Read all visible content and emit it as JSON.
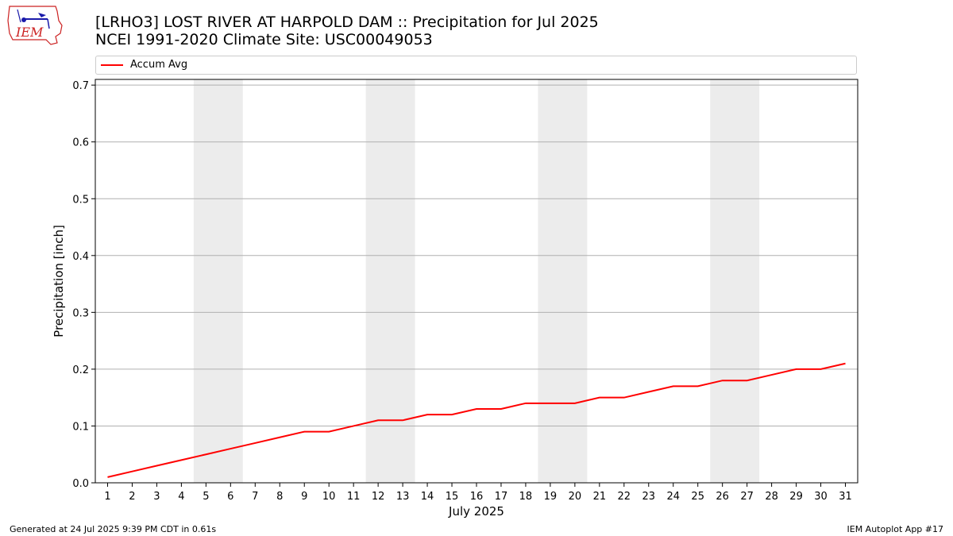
{
  "header": {
    "title_line1": "[LRHO3] LOST RIVER AT HARPOLD DAM :: Precipitation for Jul 2025",
    "title_line2": "NCEI 1991-2020 Climate Site: USC00049053"
  },
  "logo": {
    "text": "IEM"
  },
  "footer": {
    "generated": "Generated at 24 Jul 2025 9:39 PM CDT in 0.61s",
    "app": "IEM Autoplot App #17"
  },
  "colors": {
    "series": "#ff0000",
    "weekend_band": "#ececec",
    "grid": "#b0b0b0",
    "logo": "#cc2222"
  },
  "chart_data": {
    "type": "line",
    "title": "[LRHO3] LOST RIVER AT HARPOLD DAM :: Precipitation for Jul 2025",
    "subtitle": "NCEI 1991-2020 Climate Site: USC00049053",
    "xlabel": "July 2025",
    "ylabel": "Precipitation [inch]",
    "x": [
      1,
      2,
      3,
      4,
      5,
      6,
      7,
      8,
      9,
      10,
      11,
      12,
      13,
      14,
      15,
      16,
      17,
      18,
      19,
      20,
      21,
      22,
      23,
      24,
      25,
      26,
      27,
      28,
      29,
      30,
      31
    ],
    "series": [
      {
        "name": "Accum Avg",
        "values": [
          0.01,
          0.02,
          0.03,
          0.04,
          0.05,
          0.06,
          0.07,
          0.08,
          0.09,
          0.09,
          0.1,
          0.11,
          0.11,
          0.12,
          0.12,
          0.13,
          0.13,
          0.14,
          0.14,
          0.14,
          0.15,
          0.15,
          0.16,
          0.17,
          0.17,
          0.18,
          0.18,
          0.19,
          0.2,
          0.2,
          0.21
        ]
      }
    ],
    "xlim": [
      0.5,
      31.5
    ],
    "ylim": [
      0.0,
      0.71
    ],
    "yticks": [
      "0.0",
      "0.1",
      "0.2",
      "0.3",
      "0.4",
      "0.5",
      "0.6",
      "0.7"
    ],
    "weekend_bands": [
      [
        4.5,
        6.5
      ],
      [
        11.5,
        13.5
      ],
      [
        18.5,
        20.5
      ],
      [
        25.5,
        27.5
      ]
    ],
    "grid": "horizontal",
    "legend_placement": "top"
  }
}
